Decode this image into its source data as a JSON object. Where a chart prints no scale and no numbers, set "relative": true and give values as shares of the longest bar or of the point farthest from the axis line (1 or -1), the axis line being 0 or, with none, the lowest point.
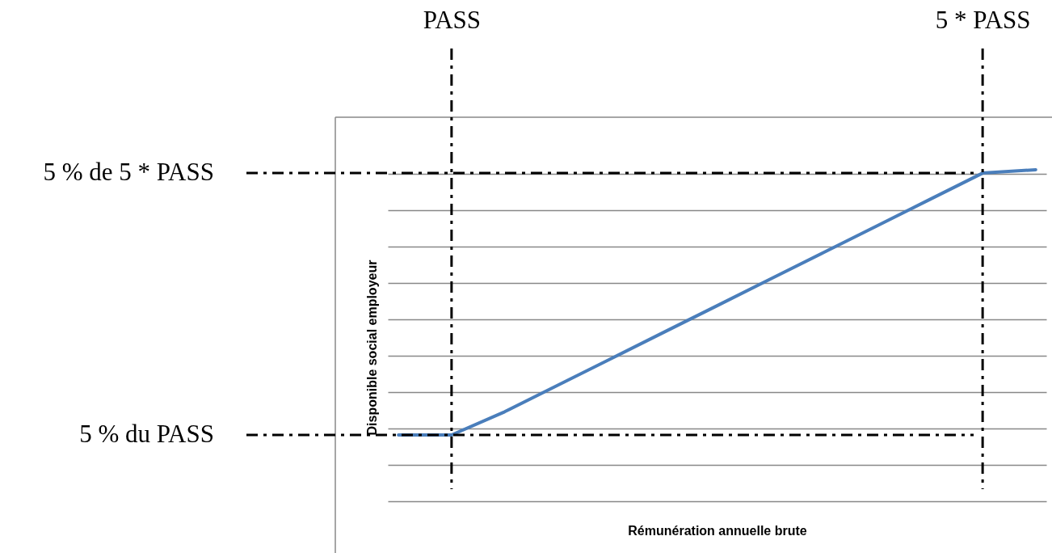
{
  "chart_data": {
    "type": "line",
    "relative": true,
    "xlabel": "Rémunération annuelle brute",
    "ylabel": "Disponible social employeur",
    "categories": [
      null,
      "PASS",
      null,
      null,
      null,
      null,
      null,
      null,
      null,
      null,
      null,
      "5 * PASS",
      null
    ],
    "series": [
      {
        "color": "#4a7ebb",
        "values": [
          0.2,
          0.2,
          0.27,
          0.35,
          0.43,
          0.51,
          0.59,
          0.67,
          0.75,
          0.83,
          0.91,
          0.99,
          1
        ]
      }
    ],
    "grid": "y",
    "line_style": "solid",
    "marker": "none",
    "ref_lines": [
      {
        "axis": "x",
        "value": "PASS",
        "color": "#000000",
        "line_style": "dashdot"
      },
      {
        "axis": "x",
        "value": "5 * PASS",
        "color": "#000000",
        "line_style": "dashdot"
      },
      {
        "axis": "y",
        "value": 0.2,
        "label": "5 % du PASS",
        "color": "#000000",
        "line_style": "dashdot"
      },
      {
        "axis": "y",
        "value": 0.99,
        "label": "5 % de 5 * PASS",
        "color": "#000000",
        "line_style": "dashdot"
      }
    ]
  }
}
